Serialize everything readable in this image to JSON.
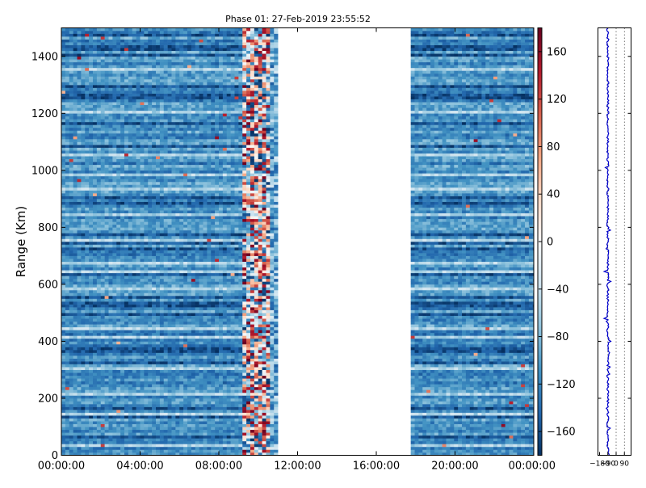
{
  "chart_data": [
    {
      "type": "heatmap",
      "title": "Phase 01: 27-Feb-2019 23:55:52",
      "ylabel": "Range (Km)",
      "xlabel": "",
      "xlim": [
        "00:00:00",
        "24:00:00"
      ],
      "ylim": [
        0,
        1500
      ],
      "x_ticks": [
        "00:00:00",
        "04:00:00",
        "08:00:00",
        "12:00:00",
        "16:00:00",
        "20:00:00",
        "00:00:00"
      ],
      "y_ticks": [
        0,
        200,
        400,
        600,
        800,
        1000,
        1200,
        1400
      ],
      "data_segments": [
        {
          "start_hour": 0,
          "end_hour": 9.2,
          "typical_value": -110
        },
        {
          "start_hour": 9.2,
          "end_hour": 11.0,
          "typical_value": "mixed -180 to 180"
        },
        {
          "start_hour": 17.75,
          "end_hour": 24.0,
          "typical_value": -110
        }
      ],
      "gap": {
        "start_hour": 11.0,
        "end_hour": 17.75
      },
      "colormap": "RdBu_r",
      "colorbar": {
        "vmin": -180,
        "vmax": 180,
        "ticks": [
          160,
          120,
          80,
          40,
          0,
          -40,
          -80,
          -120,
          -160
        ]
      },
      "grid": false
    },
    {
      "type": "line",
      "title": "",
      "xlabel": "",
      "ylabel": "",
      "x_tick_labels": [
        "−180",
        "−90",
        "0",
        "90"
      ],
      "ylim": [
        0,
        1500
      ],
      "series_color": "#0000cc",
      "grid": "dotted vertical",
      "typical_value": -90
    }
  ],
  "colors": {
    "low": "#053061",
    "mid": "#f7f7f7",
    "high": "#67001f",
    "profile_line": "#0000cc"
  }
}
